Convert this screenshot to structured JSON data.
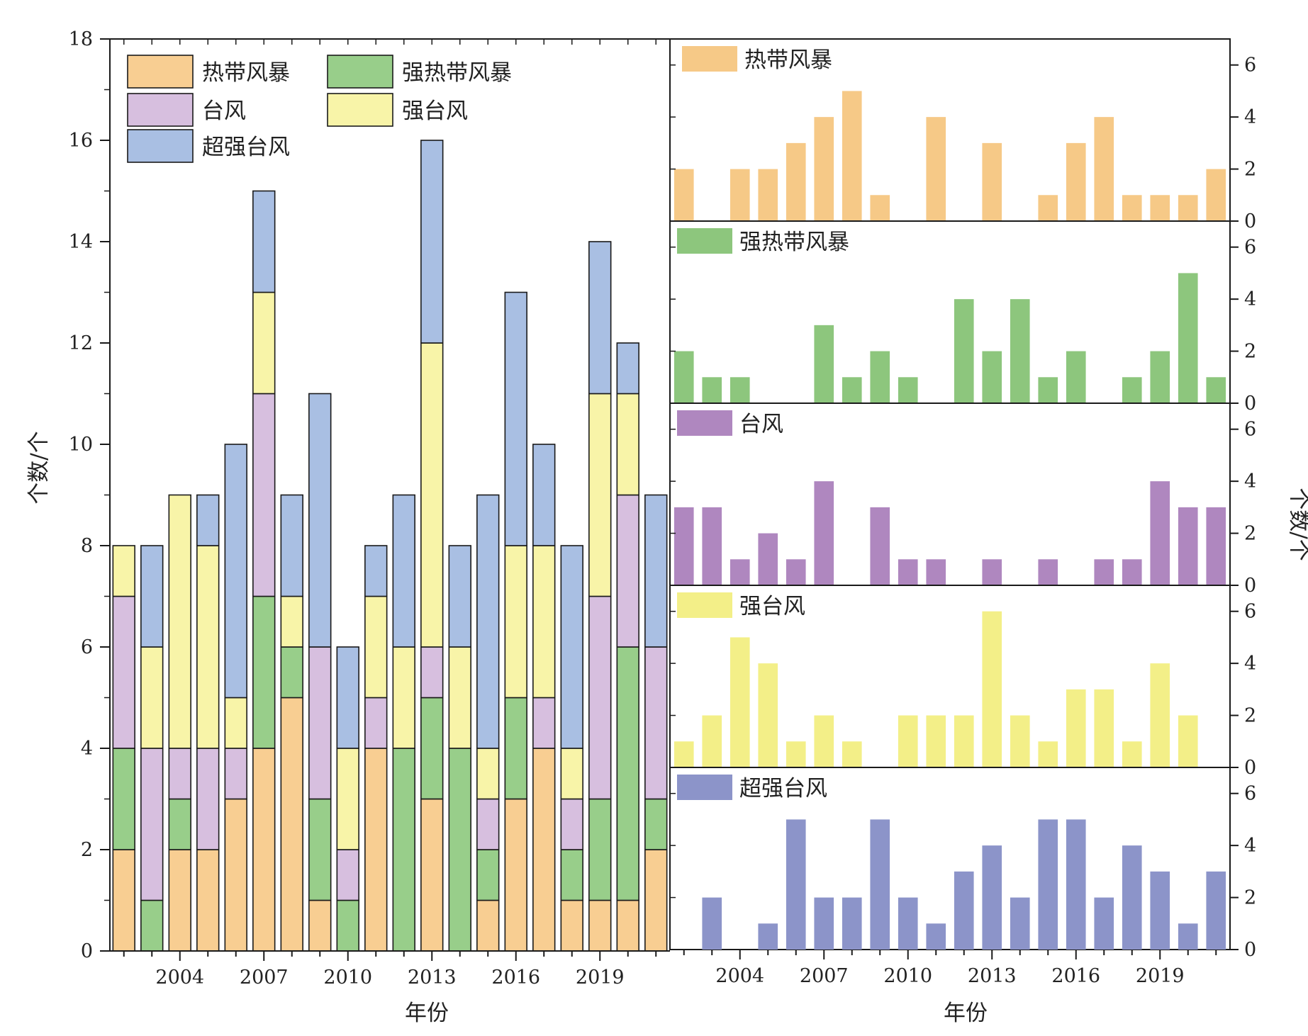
{
  "chart_data": [
    {
      "type": "bar",
      "stacked": true,
      "xlabel": "年份",
      "ylabel": "个数/个",
      "ylim": [
        0,
        18
      ],
      "yticks": [
        0,
        2,
        4,
        6,
        8,
        10,
        12,
        14,
        16,
        18
      ],
      "categories": [
        2002,
        2003,
        2004,
        2005,
        2006,
        2007,
        2008,
        2009,
        2010,
        2011,
        2012,
        2013,
        2014,
        2015,
        2016,
        2017,
        2018,
        2019,
        2020,
        2021
      ],
      "xtick_labels": [
        "2004",
        "2007",
        "2010",
        "2013",
        "2016",
        "2019"
      ],
      "legend_position": "top-left",
      "series": [
        {
          "name": "热带风暴",
          "color": "#F8CE92",
          "values": [
            2,
            0,
            2,
            2,
            3,
            4,
            5,
            1,
            0,
            4,
            0,
            3,
            0,
            1,
            3,
            4,
            1,
            1,
            1,
            2
          ]
        },
        {
          "name": "强热带风暴",
          "color": "#98CE8A",
          "values": [
            2,
            1,
            1,
            0,
            0,
            3,
            1,
            2,
            1,
            0,
            4,
            2,
            4,
            1,
            2,
            0,
            1,
            2,
            5,
            1
          ]
        },
        {
          "name": "台风",
          "color": "#D7BFDF",
          "values": [
            3,
            3,
            1,
            2,
            1,
            4,
            0,
            3,
            1,
            1,
            0,
            1,
            0,
            1,
            0,
            1,
            1,
            4,
            3,
            3
          ]
        },
        {
          "name": "强台风",
          "color": "#F8F4A8",
          "values": [
            1,
            2,
            5,
            4,
            1,
            2,
            1,
            0,
            2,
            2,
            2,
            6,
            2,
            1,
            3,
            3,
            1,
            4,
            2,
            0
          ]
        },
        {
          "name": "超强台风",
          "color": "#A9BFE3",
          "values": [
            0,
            2,
            0,
            1,
            5,
            2,
            2,
            5,
            2,
            1,
            3,
            4,
            2,
            5,
            5,
            2,
            4,
            3,
            1,
            3
          ]
        }
      ]
    },
    {
      "type": "bar",
      "layout": "stacked-panels",
      "xlabel": "年份",
      "ylabel": "个数/个",
      "ylim": [
        0,
        7
      ],
      "yticks": [
        0,
        2,
        4,
        6
      ],
      "categories": [
        2002,
        2003,
        2004,
        2005,
        2006,
        2007,
        2008,
        2009,
        2010,
        2011,
        2012,
        2013,
        2014,
        2015,
        2016,
        2017,
        2018,
        2019,
        2020,
        2021
      ],
      "xtick_labels": [
        "2004",
        "2007",
        "2010",
        "2013",
        "2016",
        "2019"
      ],
      "panels": [
        {
          "name": "热带风暴",
          "color": "#F6C987",
          "values": [
            2,
            0,
            2,
            2,
            3,
            4,
            5,
            1,
            0,
            4,
            0,
            3,
            0,
            1,
            3,
            4,
            1,
            1,
            1,
            2
          ]
        },
        {
          "name": "强热带风暴",
          "color": "#8DC67D",
          "values": [
            2,
            1,
            1,
            0,
            0,
            3,
            1,
            2,
            1,
            0,
            4,
            2,
            4,
            1,
            2,
            0,
            1,
            2,
            5,
            1
          ]
        },
        {
          "name": "台风",
          "color": "#AF87BF",
          "values": [
            3,
            3,
            1,
            2,
            1,
            4,
            0,
            3,
            1,
            1,
            0,
            1,
            0,
            1,
            0,
            1,
            1,
            4,
            3,
            3
          ]
        },
        {
          "name": "强台风",
          "color": "#F3EF88",
          "values": [
            1,
            2,
            5,
            4,
            1,
            2,
            1,
            0,
            2,
            2,
            2,
            6,
            2,
            1,
            3,
            3,
            1,
            4,
            2,
            0
          ]
        },
        {
          "name": "超强台风",
          "color": "#8C94C9",
          "values": [
            0,
            2,
            0,
            1,
            5,
            2,
            2,
            5,
            2,
            1,
            3,
            4,
            2,
            5,
            5,
            2,
            4,
            3,
            1,
            3
          ]
        }
      ]
    }
  ]
}
